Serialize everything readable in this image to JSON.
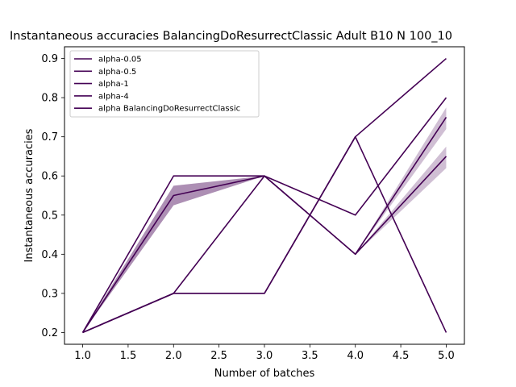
{
  "chart_data": {
    "type": "line",
    "title": "Instantaneous accuracies BalancingDoResurrectClassic Adult B10 N 100_10",
    "xlabel": "Number of batches",
    "ylabel": "Instantaneous accuracies",
    "xlim": [
      0.8,
      5.2
    ],
    "ylim": [
      0.17,
      0.93
    ],
    "xticks": [
      1.0,
      1.5,
      2.0,
      2.5,
      3.0,
      3.5,
      4.0,
      4.5,
      5.0
    ],
    "yticks": [
      0.2,
      0.3,
      0.4,
      0.5,
      0.6,
      0.7,
      0.8,
      0.9
    ],
    "xtick_labels": [
      "1.0",
      "1.5",
      "2.0",
      "2.5",
      "3.0",
      "3.5",
      "4.0",
      "4.5",
      "5.0"
    ],
    "ytick_labels": [
      "0.2",
      "0.3",
      "0.4",
      "0.5",
      "0.6",
      "0.7",
      "0.8",
      "0.9"
    ],
    "grid": false,
    "legend_position": "top-left",
    "line_color": "#440154",
    "band_color": "#440154",
    "x": [
      1,
      2,
      3,
      4,
      5
    ],
    "series": [
      {
        "name": "alpha-0.05",
        "values": [
          0.2,
          0.3,
          0.3,
          0.7,
          0.9
        ]
      },
      {
        "name": "alpha-0.5",
        "values": [
          0.2,
          0.6,
          0.6,
          0.4,
          0.75
        ],
        "band_lower": [
          0.2,
          0.525,
          0.6,
          0.4,
          0.72
        ],
        "band_upper": [
          0.2,
          0.575,
          0.6,
          0.4,
          0.775
        ]
      },
      {
        "name": "alpha-1",
        "values": [
          0.2,
          0.55,
          0.6,
          0.4,
          0.65
        ],
        "band_lower": [
          0.2,
          0.525,
          0.6,
          0.4,
          0.62
        ],
        "band_upper": [
          0.2,
          0.575,
          0.6,
          0.4,
          0.675
        ]
      },
      {
        "name": "alpha-4",
        "values": [
          0.2,
          0.3,
          0.6,
          0.5,
          0.8
        ]
      },
      {
        "name": "alpha BalancingDoResurrectClassic",
        "values": [
          0.2,
          0.3,
          0.3,
          0.7,
          0.2
        ]
      }
    ]
  }
}
